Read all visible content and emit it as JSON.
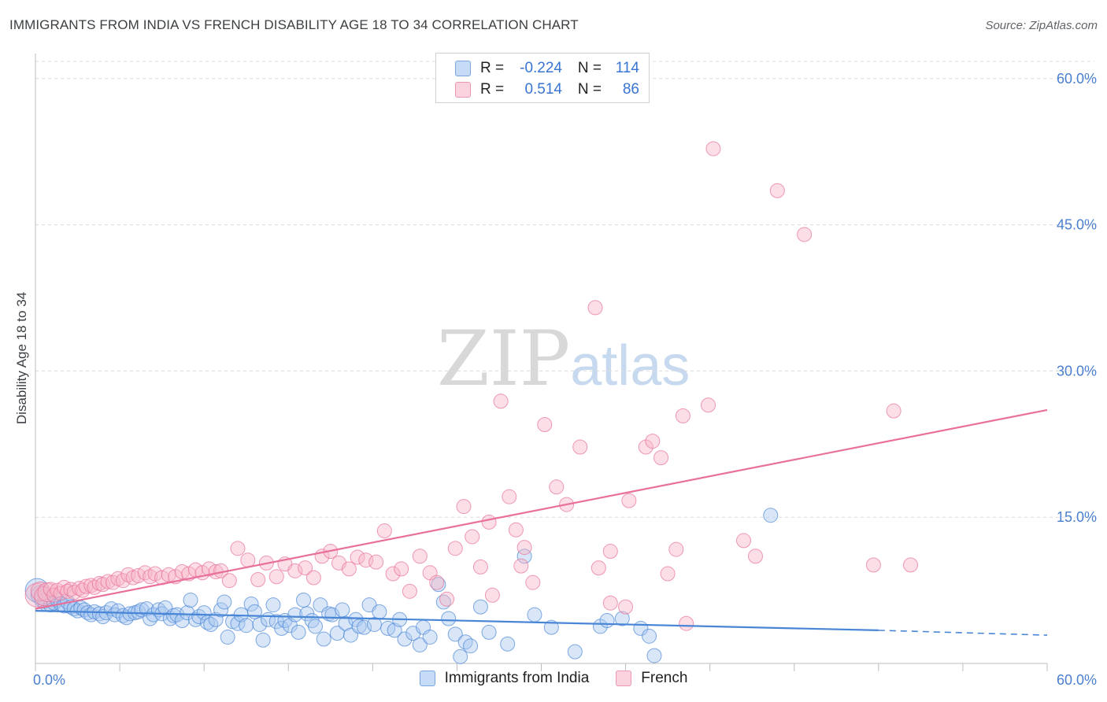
{
  "header": {
    "title": "IMMIGRANTS FROM INDIA VS FRENCH DISABILITY AGE 18 TO 34 CORRELATION CHART",
    "source": "Source: ZipAtlas.com"
  },
  "watermark": {
    "zip": "ZIP",
    "atlas": "atlas"
  },
  "legend": {
    "rows": [
      {
        "r_label": "R =",
        "r_value": "-0.224",
        "n_label": "N =",
        "n_value": "114",
        "color": "#a8c8f0"
      },
      {
        "r_label": "R =",
        "r_value": "0.514",
        "n_label": "N =",
        "n_value": "86",
        "color": "#f6b6c8"
      }
    ]
  },
  "bottom_legend": [
    {
      "label": "Immigrants from India",
      "color": "#a8c8f0"
    },
    {
      "label": "French",
      "color": "#f6b6c8"
    }
  ],
  "chart_data": {
    "type": "scatter",
    "title": "IMMIGRANTS FROM INDIA VS FRENCH DISABILITY AGE 18 TO 34 CORRELATION CHART",
    "xlabel": "",
    "ylabel": "Disability Age 18 to 34",
    "xlim": [
      0,
      60
    ],
    "ylim": [
      0,
      62
    ],
    "x_tick_labels": [
      "0.0%",
      "60.0%"
    ],
    "y_ticks": [
      15,
      30,
      45,
      60
    ],
    "y_tick_labels": [
      "15.0%",
      "30.0%",
      "45.0%",
      "60.0%"
    ],
    "grid": true,
    "legend_position": "top-center",
    "series": [
      {
        "name": "Immigrants from India",
        "color": "#4a86d6",
        "fill": "#a8c8f0",
        "R": -0.224,
        "N": 114,
        "trend": {
          "x": [
            0,
            50
          ],
          "y": [
            5.4,
            3.4
          ],
          "dashed_to": [
            60,
            2.9
          ]
        },
        "points": [
          [
            0.1,
            7.5
          ],
          [
            0.3,
            7.0
          ],
          [
            0.5,
            6.6
          ],
          [
            0.7,
            6.3
          ],
          [
            0.9,
            6.0
          ],
          [
            1.1,
            6.2
          ],
          [
            1.3,
            6.5
          ],
          [
            1.5,
            6.1
          ],
          [
            1.7,
            5.9
          ],
          [
            1.9,
            6.3
          ],
          [
            2.1,
            5.8
          ],
          [
            2.3,
            5.6
          ],
          [
            2.5,
            5.4
          ],
          [
            2.7,
            5.7
          ],
          [
            2.9,
            5.5
          ],
          [
            3.1,
            5.2
          ],
          [
            3.3,
            5.0
          ],
          [
            3.5,
            5.3
          ],
          [
            3.8,
            5.1
          ],
          [
            4.0,
            4.8
          ],
          [
            4.2,
            5.2
          ],
          [
            4.5,
            5.6
          ],
          [
            4.7,
            5.0
          ],
          [
            4.9,
            5.4
          ],
          [
            5.2,
            4.9
          ],
          [
            5.4,
            4.7
          ],
          [
            5.6,
            5.1
          ],
          [
            5.9,
            5.2
          ],
          [
            6.1,
            5.3
          ],
          [
            6.3,
            5.5
          ],
          [
            6.6,
            5.6
          ],
          [
            6.8,
            4.6
          ],
          [
            7.0,
            5.0
          ],
          [
            7.3,
            5.5
          ],
          [
            7.5,
            5.1
          ],
          [
            7.7,
            5.7
          ],
          [
            8.0,
            4.6
          ],
          [
            8.2,
            4.9
          ],
          [
            8.4,
            5.0
          ],
          [
            8.7,
            4.4
          ],
          [
            9.0,
            5.2
          ],
          [
            9.2,
            6.5
          ],
          [
            9.5,
            4.5
          ],
          [
            9.7,
            4.8
          ],
          [
            10.0,
            5.2
          ],
          [
            10.2,
            4.2
          ],
          [
            10.4,
            4.0
          ],
          [
            10.7,
            4.5
          ],
          [
            11.0,
            5.5
          ],
          [
            11.2,
            6.3
          ],
          [
            11.4,
            2.7
          ],
          [
            11.7,
            4.3
          ],
          [
            12.0,
            4.1
          ],
          [
            12.2,
            5.0
          ],
          [
            12.5,
            3.9
          ],
          [
            12.8,
            6.1
          ],
          [
            13.0,
            5.3
          ],
          [
            13.3,
            4.0
          ],
          [
            13.5,
            2.4
          ],
          [
            13.8,
            4.5
          ],
          [
            14.1,
            6.0
          ],
          [
            14.3,
            4.3
          ],
          [
            14.6,
            3.6
          ],
          [
            14.8,
            4.4
          ],
          [
            15.1,
            3.9
          ],
          [
            15.4,
            5.0
          ],
          [
            15.6,
            3.2
          ],
          [
            15.9,
            6.5
          ],
          [
            16.1,
            5.1
          ],
          [
            16.4,
            4.4
          ],
          [
            16.6,
            3.8
          ],
          [
            16.9,
            6.0
          ],
          [
            17.1,
            2.5
          ],
          [
            17.4,
            5.1
          ],
          [
            17.6,
            5.0
          ],
          [
            17.9,
            3.1
          ],
          [
            18.2,
            5.5
          ],
          [
            18.4,
            4.1
          ],
          [
            18.7,
            2.9
          ],
          [
            19.0,
            4.5
          ],
          [
            19.2,
            3.8
          ],
          [
            19.5,
            3.7
          ],
          [
            19.8,
            6.0
          ],
          [
            20.1,
            4.0
          ],
          [
            20.4,
            5.3
          ],
          [
            20.9,
            3.6
          ],
          [
            21.3,
            3.4
          ],
          [
            21.6,
            4.5
          ],
          [
            21.9,
            2.5
          ],
          [
            22.4,
            3.1
          ],
          [
            22.8,
            1.9
          ],
          [
            23.0,
            3.7
          ],
          [
            23.4,
            2.7
          ],
          [
            23.9,
            8.1
          ],
          [
            24.2,
            6.3
          ],
          [
            24.5,
            4.6
          ],
          [
            24.9,
            3.0
          ],
          [
            25.2,
            0.7
          ],
          [
            25.5,
            2.2
          ],
          [
            25.8,
            1.8
          ],
          [
            26.4,
            5.8
          ],
          [
            26.9,
            3.2
          ],
          [
            28.0,
            2.0
          ],
          [
            29.0,
            11.0
          ],
          [
            29.6,
            5.0
          ],
          [
            30.6,
            3.7
          ],
          [
            32.0,
            1.2
          ],
          [
            33.5,
            3.8
          ],
          [
            33.9,
            4.4
          ],
          [
            34.8,
            4.6
          ],
          [
            35.9,
            3.6
          ],
          [
            36.4,
            2.8
          ],
          [
            36.7,
            0.8
          ],
          [
            43.6,
            15.2
          ]
        ]
      },
      {
        "name": "French",
        "color": "#e8709a",
        "fill": "#f6b6c8",
        "R": 0.514,
        "N": 86,
        "trend": {
          "x": [
            0,
            60
          ],
          "y": [
            5.6,
            26.0
          ]
        },
        "points": [
          [
            0.1,
            7.0
          ],
          [
            0.3,
            7.4
          ],
          [
            0.5,
            6.9
          ],
          [
            0.7,
            7.3
          ],
          [
            0.9,
            7.6
          ],
          [
            1.1,
            7.0
          ],
          [
            1.3,
            7.5
          ],
          [
            1.5,
            7.2
          ],
          [
            1.7,
            7.8
          ],
          [
            1.9,
            7.4
          ],
          [
            2.1,
            7.6
          ],
          [
            2.3,
            7.3
          ],
          [
            2.6,
            7.7
          ],
          [
            2.8,
            7.5
          ],
          [
            3.0,
            7.9
          ],
          [
            3.3,
            8.0
          ],
          [
            3.5,
            7.8
          ],
          [
            3.8,
            8.2
          ],
          [
            4.0,
            8.1
          ],
          [
            4.3,
            8.4
          ],
          [
            4.6,
            8.3
          ],
          [
            4.9,
            8.7
          ],
          [
            5.2,
            8.5
          ],
          [
            5.5,
            9.1
          ],
          [
            5.8,
            8.8
          ],
          [
            6.1,
            9.0
          ],
          [
            6.5,
            9.3
          ],
          [
            6.8,
            8.9
          ],
          [
            7.1,
            9.2
          ],
          [
            7.5,
            8.8
          ],
          [
            7.9,
            9.1
          ],
          [
            8.3,
            8.9
          ],
          [
            8.7,
            9.4
          ],
          [
            9.1,
            9.2
          ],
          [
            9.5,
            9.6
          ],
          [
            9.9,
            9.3
          ],
          [
            10.3,
            9.7
          ],
          [
            10.7,
            9.4
          ],
          [
            11.0,
            9.5
          ],
          [
            11.5,
            8.5
          ],
          [
            12.0,
            11.8
          ],
          [
            12.6,
            10.6
          ],
          [
            13.2,
            8.6
          ],
          [
            13.7,
            10.3
          ],
          [
            14.3,
            8.9
          ],
          [
            14.8,
            10.2
          ],
          [
            15.4,
            9.5
          ],
          [
            16.0,
            9.8
          ],
          [
            16.5,
            8.8
          ],
          [
            17.0,
            11.0
          ],
          [
            17.5,
            11.5
          ],
          [
            18.0,
            10.3
          ],
          [
            18.6,
            9.7
          ],
          [
            19.1,
            10.9
          ],
          [
            19.6,
            10.6
          ],
          [
            20.2,
            10.4
          ],
          [
            20.7,
            13.6
          ],
          [
            21.2,
            9.2
          ],
          [
            21.7,
            9.7
          ],
          [
            22.2,
            7.4
          ],
          [
            22.8,
            11.0
          ],
          [
            23.4,
            9.3
          ],
          [
            23.8,
            8.3
          ],
          [
            24.4,
            6.6
          ],
          [
            24.9,
            11.8
          ],
          [
            25.4,
            16.1
          ],
          [
            25.9,
            13.0
          ],
          [
            26.4,
            9.9
          ],
          [
            26.9,
            14.5
          ],
          [
            27.6,
            26.9
          ],
          [
            28.1,
            17.1
          ],
          [
            28.5,
            13.7
          ],
          [
            29.0,
            11.9
          ],
          [
            29.5,
            8.3
          ],
          [
            30.2,
            24.5
          ],
          [
            30.9,
            18.1
          ],
          [
            31.5,
            16.3
          ],
          [
            32.3,
            22.2
          ],
          [
            33.2,
            36.5
          ],
          [
            34.1,
            6.2
          ],
          [
            35.2,
            16.7
          ],
          [
            36.2,
            22.2
          ],
          [
            36.6,
            22.8
          ],
          [
            37.1,
            21.1
          ],
          [
            38.4,
            25.4
          ],
          [
            39.9,
            26.5
          ]
        ],
        "extra_points": [
          [
            28.8,
            10.0
          ],
          [
            27.1,
            7.0
          ],
          [
            33.4,
            9.8
          ],
          [
            34.1,
            11.5
          ],
          [
            35.0,
            5.8
          ],
          [
            37.5,
            9.2
          ],
          [
            38.0,
            11.7
          ],
          [
            38.6,
            4.1
          ],
          [
            42.0,
            12.6
          ],
          [
            42.7,
            11.0
          ],
          [
            49.7,
            10.1
          ],
          [
            51.9,
            10.1
          ],
          [
            50.9,
            25.9
          ],
          [
            44.0,
            48.5
          ],
          [
            45.6,
            44.0
          ],
          [
            40.2,
            52.8
          ]
        ]
      }
    ]
  }
}
